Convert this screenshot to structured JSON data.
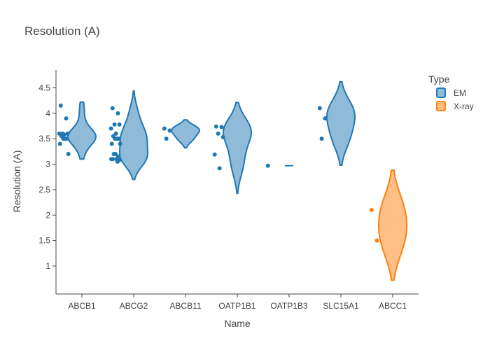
{
  "chart_data": {
    "type": "violin",
    "title": "Resolution (A)",
    "xlabel": "Name",
    "ylabel": "Resolution (A)",
    "categories": [
      "ABCB1",
      "ABCG2",
      "ABCB11",
      "OATP1B1",
      "OATP1B3",
      "SLC15A1",
      "ABCC1"
    ],
    "y_ticks": [
      1,
      1.5,
      2,
      2.5,
      3,
      3.5,
      4,
      4.5
    ],
    "y_tick_labels": [
      "1",
      "1.5",
      "2",
      "2.5",
      "3",
      "3.5",
      "4",
      "4.5"
    ],
    "ylim": [
      0.45,
      4.85
    ],
    "grid": false,
    "legend": {
      "title": "Type",
      "position": "top-right",
      "items": [
        {
          "name": "EM",
          "color": "#1f77b4"
        },
        {
          "name": "X-ray",
          "color": "#ff7f0e"
        }
      ]
    },
    "series": [
      {
        "name": "EM",
        "color": "#1f77b4",
        "groups": [
          {
            "category": "ABCB1",
            "values": [
              4.15,
              3.9,
              3.6,
              3.6,
              3.6,
              3.58,
              3.55,
              3.5,
              3.5,
              3.5,
              3.4,
              3.2
            ],
            "range": [
              3.1,
              4.22
            ]
          },
          {
            "category": "ABCG2",
            "values": [
              4.1,
              4.0,
              3.78,
              3.78,
              3.7,
              3.6,
              3.55,
              3.5,
              3.5,
              3.5,
              3.4,
              3.4,
              3.2,
              3.2,
              3.15,
              3.1,
              3.1,
              3.1,
              3.08,
              3.05
            ],
            "range": [
              2.7,
              4.44
            ]
          },
          {
            "category": "ABCB11",
            "values": [
              3.7,
              3.66,
              3.5
            ],
            "range": [
              3.32,
              3.87
            ]
          },
          {
            "category": "OATP1B1",
            "values": [
              3.74,
              3.73,
              3.6,
              3.53,
              3.19,
              2.92
            ],
            "range": [
              2.43,
              4.21
            ]
          },
          {
            "category": "OATP1B3",
            "values": [
              2.97
            ],
            "range": [
              2.97,
              2.97
            ]
          },
          {
            "category": "SLC15A1",
            "values": [
              4.1,
              3.9,
              3.5
            ],
            "range": [
              2.98,
              4.62
            ]
          }
        ]
      },
      {
        "name": "X-ray",
        "color": "#ff7f0e",
        "groups": [
          {
            "category": "ABCC1",
            "values": [
              2.1,
              1.5
            ],
            "range": [
              0.72,
              2.88
            ]
          }
        ]
      }
    ]
  }
}
